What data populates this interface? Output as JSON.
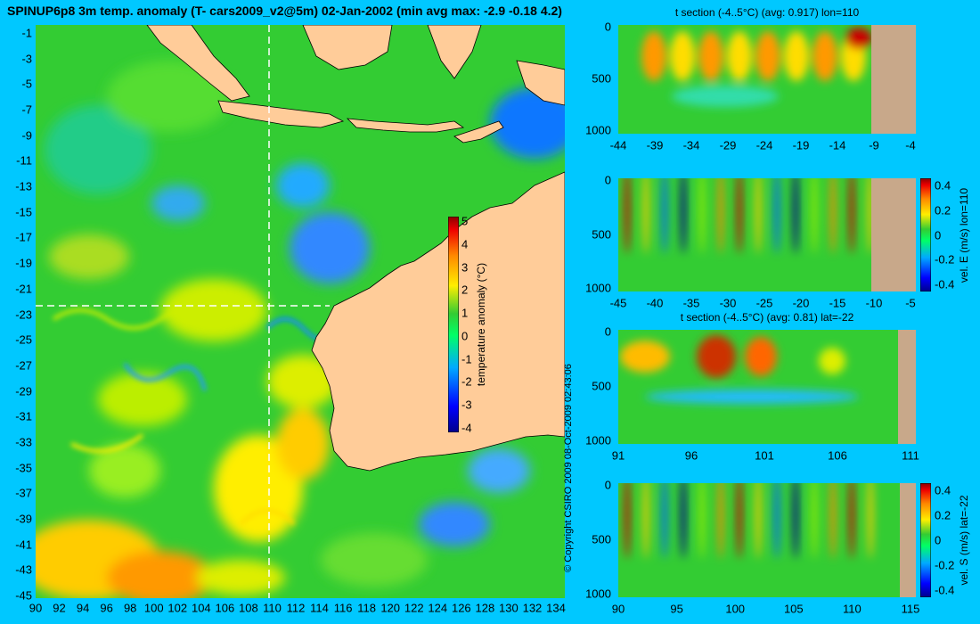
{
  "main_title": "SPINUP6p8 3m temp. anomaly (T- cars2009_v2@5m) 02-Jan-2002 (min avg max: -2.9 -0.18 4.2)",
  "copyright": "© Copyright CSIRO 2009  08-Oct-2009 02:43:06",
  "map": {
    "lat_ticks": [
      "-1",
      "-3",
      "-5",
      "-7",
      "-9",
      "-11",
      "-13",
      "-15",
      "-17",
      "-19",
      "-21",
      "-23",
      "-25",
      "-27",
      "-29",
      "-31",
      "-33",
      "-35",
      "-37",
      "-39",
      "-41",
      "-43",
      "-45"
    ],
    "lon_ticks": [
      "90",
      "92",
      "94",
      "96",
      "98",
      "100",
      "102",
      "104",
      "106",
      "108",
      "110",
      "112",
      "114",
      "116",
      "118",
      "120",
      "122",
      "124",
      "126",
      "128",
      "130",
      "132",
      "134"
    ],
    "section_lon": 110,
    "section_lat": -22,
    "colors": {
      "land": "#ffcc99",
      "ocean": "#33cc33",
      "warm": "#ffee00",
      "cool": "#0066ff",
      "guide": "#ffffff"
    },
    "colorbar": {
      "label": "temperature anomaly (°C)",
      "ticks": [
        "5",
        "4",
        "3",
        "2",
        "1",
        "0",
        "-1",
        "-2",
        "-3",
        "-4"
      ],
      "range": [
        -4,
        5
      ]
    }
  },
  "panels": [
    {
      "id": "t-lon",
      "title": "t section (-4..5°C) (avg: 0.917) lon=110",
      "y_ticks": [
        "0",
        "500",
        "1000"
      ],
      "x_ticks": [
        "-44",
        "-39",
        "-34",
        "-29",
        "-24",
        "-19",
        "-14",
        "-9",
        "-4"
      ],
      "colorbar": null
    },
    {
      "id": "u-lon",
      "title": "",
      "y_ticks": [
        "0",
        "500",
        "1000"
      ],
      "x_ticks": [
        "-45",
        "-40",
        "-35",
        "-30",
        "-25",
        "-20",
        "-15",
        "-10",
        "-5"
      ],
      "colorbar": {
        "label": "vel. E (m/s) lon=110",
        "ticks": [
          "0.4",
          "0.2",
          "0",
          "-0.2",
          "-0.4"
        ]
      }
    },
    {
      "id": "t-lat",
      "title": "t section (-4..5°C) (avg: 0.81) lat=-22",
      "y_ticks": [
        "0",
        "500",
        "1000"
      ],
      "x_ticks": [
        "91",
        "96",
        "101",
        "106",
        "111"
      ],
      "colorbar": null
    },
    {
      "id": "v-lat",
      "title": "",
      "y_ticks": [
        "0",
        "500",
        "1000"
      ],
      "x_ticks": [
        "90",
        "95",
        "100",
        "105",
        "110",
        "115"
      ],
      "colorbar": {
        "label": "vel. S (m/s) lat=-22",
        "ticks": [
          "0.4",
          "0.2",
          "0",
          "-0.2",
          "-0.4"
        ]
      }
    }
  ]
}
